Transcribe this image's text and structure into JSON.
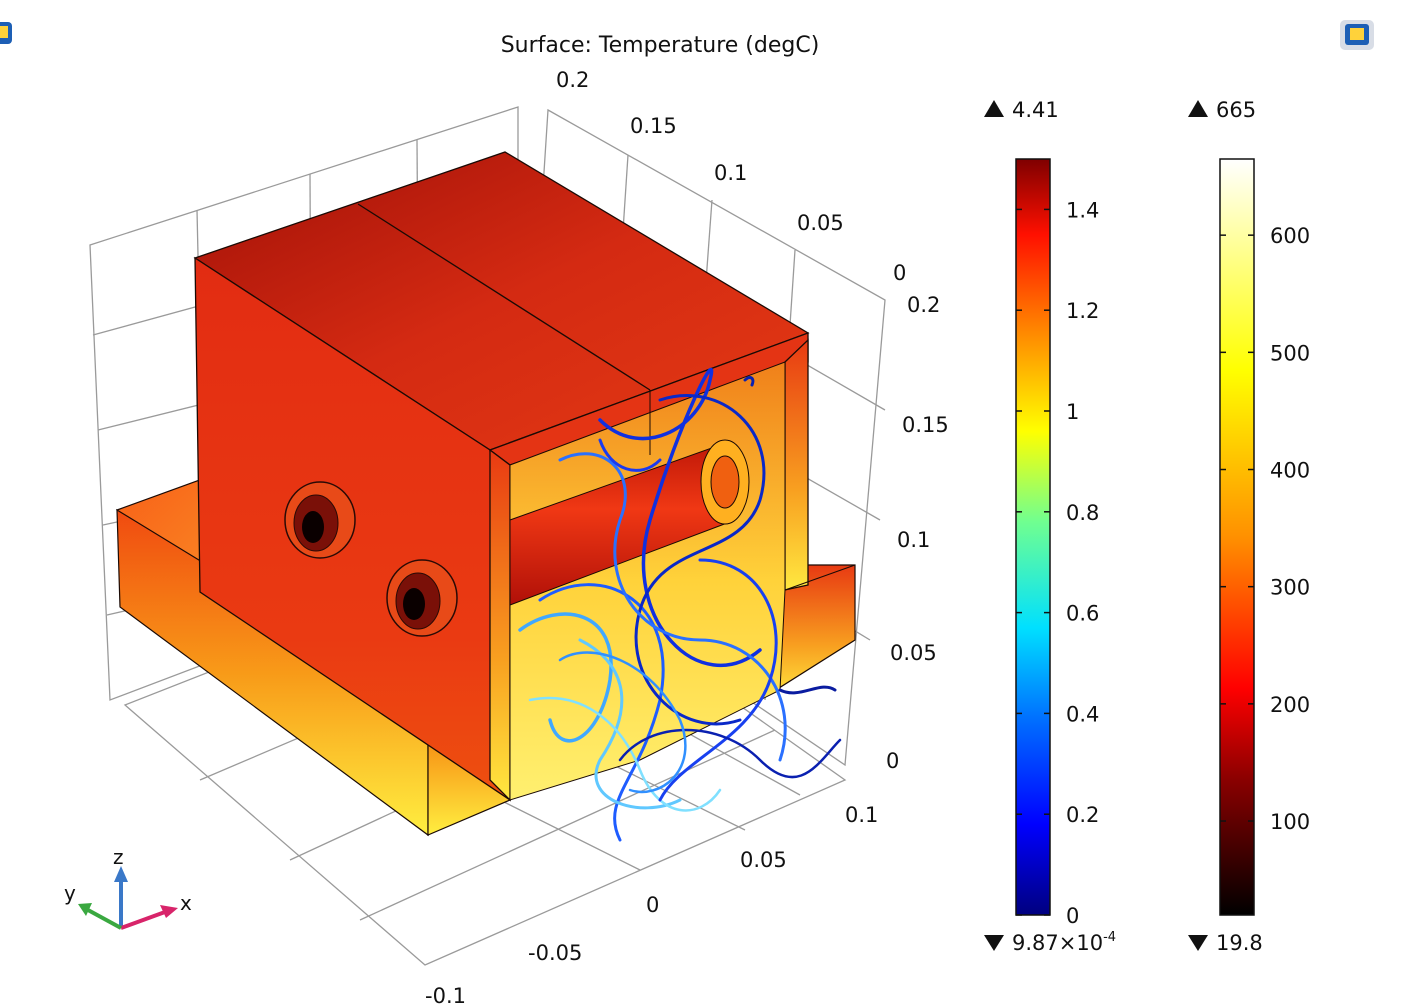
{
  "chart_data": {
    "type": "3d-surface-streamline",
    "title": "Surface: Temperature (degC)",
    "x_axis": {
      "ticks": [
        "0",
        "0.05",
        "0.1"
      ]
    },
    "y_axis": {
      "ticks": [
        "-0.1",
        "-0.05",
        "0"
      ]
    },
    "z_axis": {
      "ticks": [
        "0",
        "0.05",
        "0.1",
        "0.15",
        "0.2"
      ]
    },
    "back_axis": {
      "ticks": [
        "0",
        "0.05",
        "0.1",
        "0.15",
        "0.2"
      ]
    },
    "triad": {
      "x": "x",
      "y": "y",
      "z": "z"
    },
    "colorbars": [
      {
        "max_label": "4.41",
        "min_label": "9.87×10",
        "min_exp": "-4",
        "range": [
          0,
          1.5
        ],
        "ticks": [
          0,
          0.2,
          0.4,
          0.6,
          0.8,
          1,
          1.2,
          1.4
        ],
        "tick_labels": [
          "0",
          "0.2",
          "0.4",
          "0.6",
          "0.8",
          "1",
          "1.2",
          "1.4"
        ],
        "colormap": [
          "#00007f",
          "#0000ff",
          "#0080ff",
          "#00ffff",
          "#80ff80",
          "#ffff00",
          "#ff8000",
          "#ff0000",
          "#7f0000"
        ]
      },
      {
        "max_label": "665",
        "min_label": "19.8",
        "range": [
          19.8,
          665
        ],
        "ticks": [
          100,
          200,
          300,
          400,
          500,
          600
        ],
        "tick_labels": [
          "100",
          "200",
          "300",
          "400",
          "500",
          "600"
        ],
        "colormap": [
          "#000000",
          "#8b0000",
          "#ff0000",
          "#ff8000",
          "#ffff00",
          "#ffffff"
        ]
      }
    ],
    "grid": true
  }
}
